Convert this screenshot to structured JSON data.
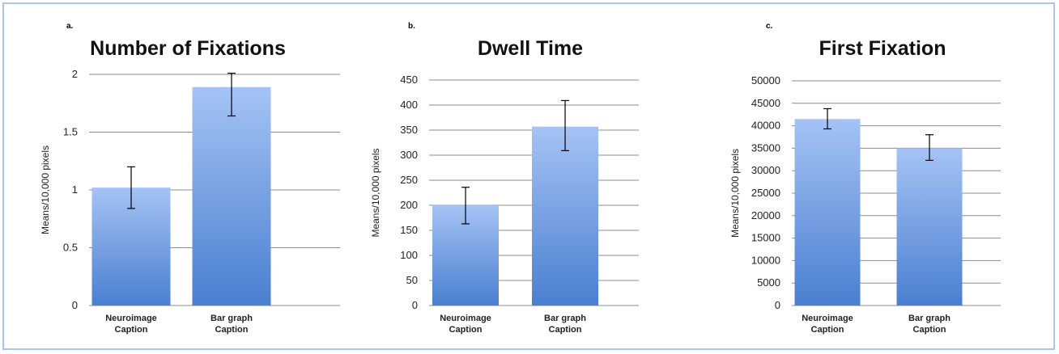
{
  "chart_data": [
    {
      "type": "bar",
      "panel_letter": "a.",
      "title": "Number of Fixations",
      "ylabel": "Means/10,000 pixels",
      "xlabel": "",
      "categories": [
        [
          "Neuroimage",
          "Caption"
        ],
        [
          "Bar graph",
          "Caption"
        ]
      ],
      "values": [
        1.02,
        1.89
      ],
      "error_bars": [
        [
          0.84,
          1.2
        ],
        [
          1.64,
          2.01
        ]
      ],
      "ylim": [
        0,
        2
      ],
      "yticks": [
        0,
        0.5,
        1,
        1.5,
        2
      ],
      "ytick_labels": [
        "0",
        "0.5",
        "1",
        "1.5",
        "2"
      ],
      "grid": true,
      "legend": "none"
    },
    {
      "type": "bar",
      "panel_letter": "b.",
      "title": "Dwell Time",
      "ylabel": "Means/10,000 pixels",
      "xlabel": "",
      "categories": [
        [
          "Neuroimage",
          "Caption"
        ],
        [
          "Bar graph",
          "Caption"
        ]
      ],
      "values": [
        200,
        357
      ],
      "error_bars": [
        [
          163,
          236
        ],
        [
          309,
          409
        ]
      ],
      "ylim": [
        0,
        450
      ],
      "yticks": [
        0,
        50,
        100,
        150,
        200,
        250,
        300,
        350,
        400,
        450
      ],
      "ytick_labels": [
        "0",
        "50",
        "100",
        "150",
        "200",
        "250",
        "300",
        "350",
        "400",
        "450"
      ],
      "grid": true,
      "legend": "none"
    },
    {
      "type": "bar",
      "panel_letter": "c.",
      "title": "First Fixation",
      "ylabel": "Means/10,000 pixels",
      "xlabel": "",
      "categories": [
        [
          "Neuroimage",
          "Caption"
        ],
        [
          "Bar graph",
          "Caption"
        ]
      ],
      "values": [
        41500,
        35000
      ],
      "error_bars": [
        [
          39300,
          43800
        ],
        [
          32300,
          38000
        ]
      ],
      "ylim": [
        0,
        50000
      ],
      "yticks": [
        0,
        5000,
        10000,
        15000,
        20000,
        25000,
        30000,
        35000,
        40000,
        45000,
        50000
      ],
      "ytick_labels": [
        "0",
        "5000",
        "10000",
        "15000",
        "20000",
        "25000",
        "30000",
        "35000",
        "40000",
        "45000",
        "50000"
      ],
      "grid": true,
      "legend": "none"
    }
  ],
  "colors": {
    "bar_top": "#a5c3f5",
    "bar_bottom": "#4a7fd0",
    "grid": "#8c8c8c",
    "error_bar": "#000000",
    "frame_border": "#a9c6ee"
  }
}
